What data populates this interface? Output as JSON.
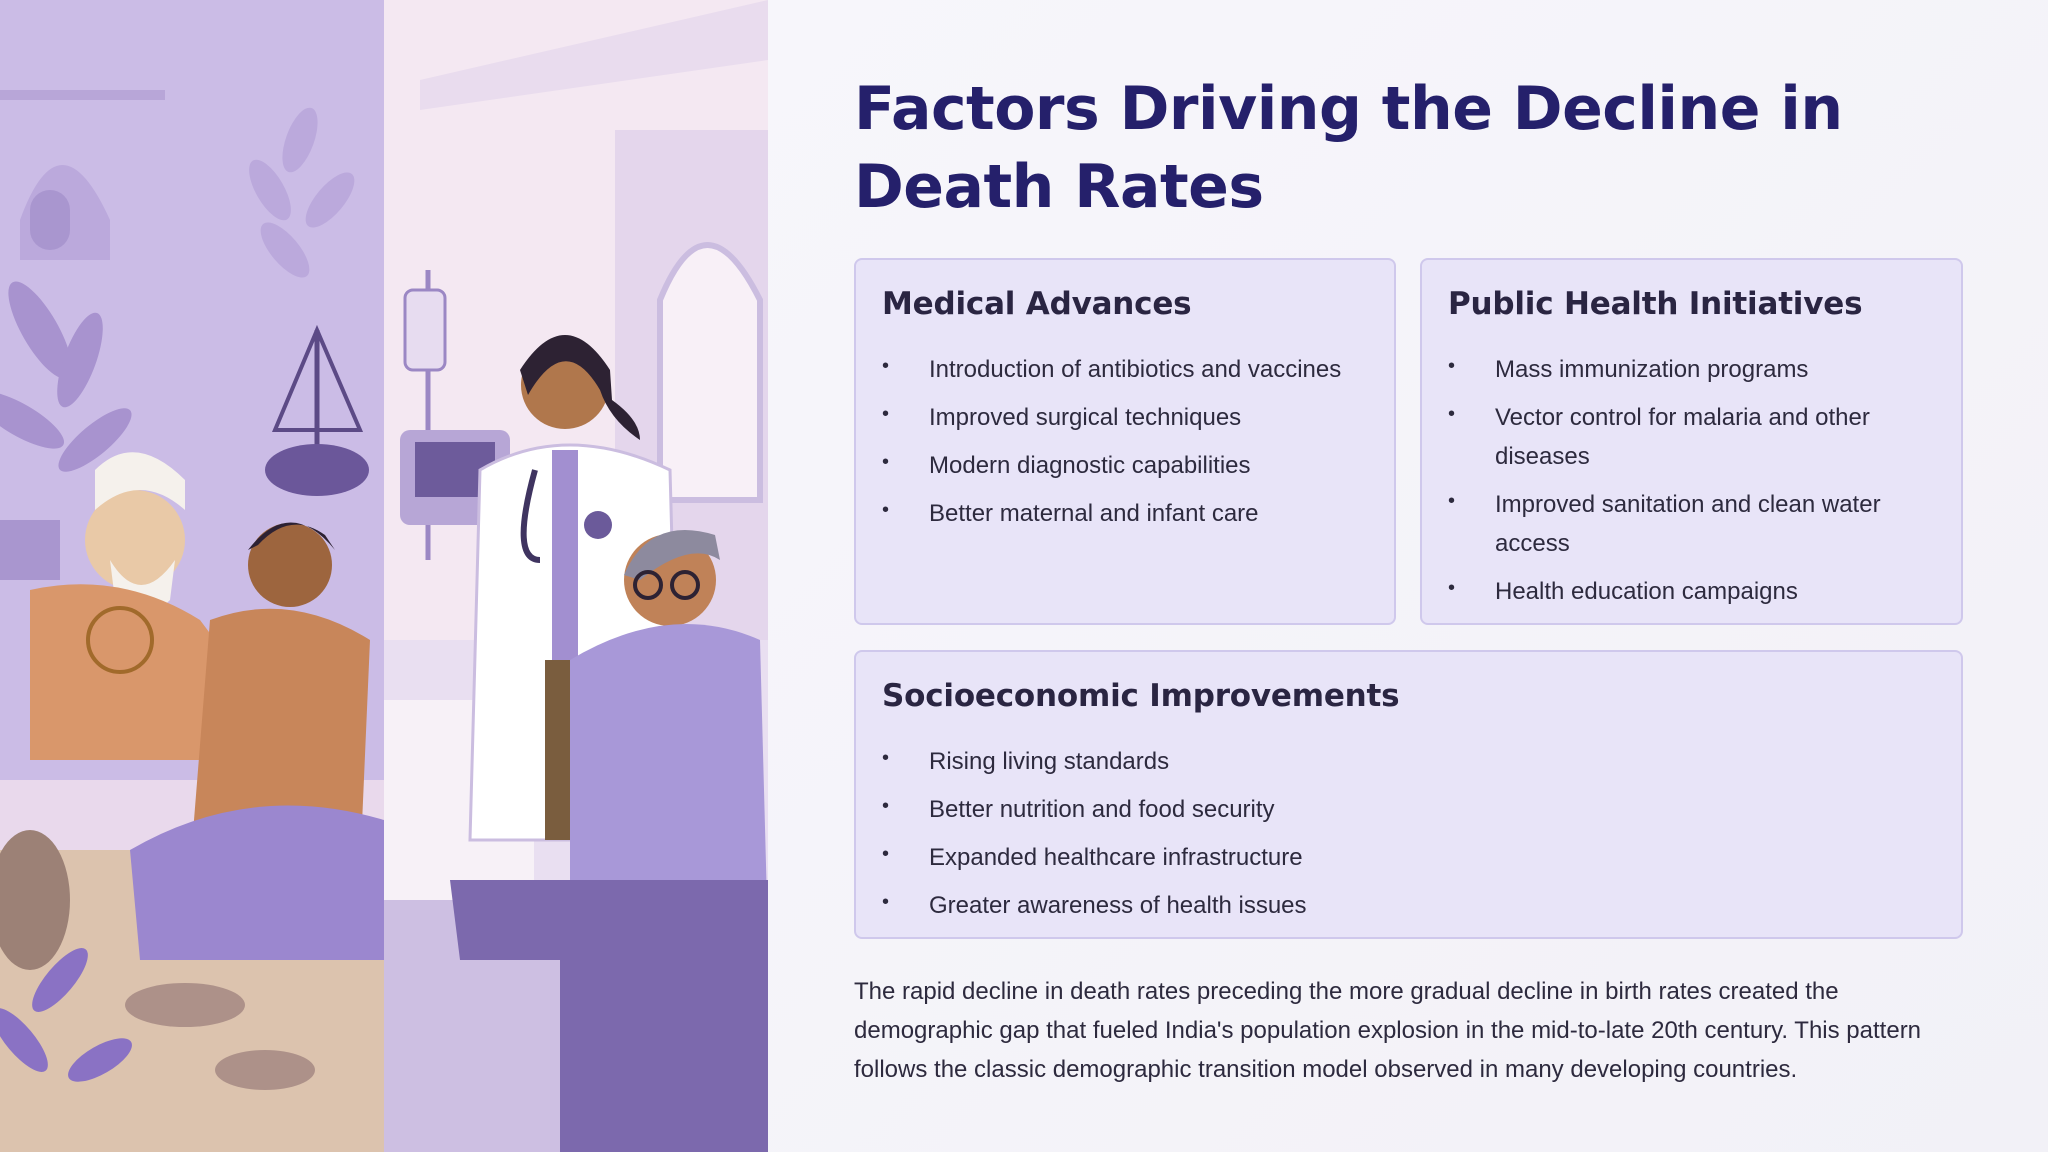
{
  "title": "Factors Driving the Decline in Death Rates",
  "cards": {
    "medical": {
      "heading": "Medical Advances",
      "items": [
        "Introduction of antibiotics and vaccines",
        "Improved surgical techniques",
        "Modern diagnostic capabilities",
        "Better maternal and infant care"
      ]
    },
    "public": {
      "heading": "Public Health Initiatives",
      "items": [
        "Mass immunization programs",
        "Vector control for malaria and other diseases",
        "Improved sanitation and clean water access",
        "Health education campaigns"
      ]
    },
    "socio": {
      "heading": "Socioeconomic Improvements",
      "items": [
        "Rising living standards",
        "Better nutrition and food security",
        "Expanded healthcare infrastructure",
        "Greater awareness of health issues"
      ]
    }
  },
  "bullet": "•",
  "summary": "The rapid decline in death rates preceding the more gradual decline in birth rates created the demographic gap that fueled India's population explosion in the mid-to-late 20th century. This pattern follows the classic demographic transition model observed in many developing countries.",
  "colors": {
    "title": "#25206b",
    "card_bg": "#e8e4f8",
    "card_border": "#cfc8ec",
    "illustration_lavender": "#b9a8dc"
  }
}
